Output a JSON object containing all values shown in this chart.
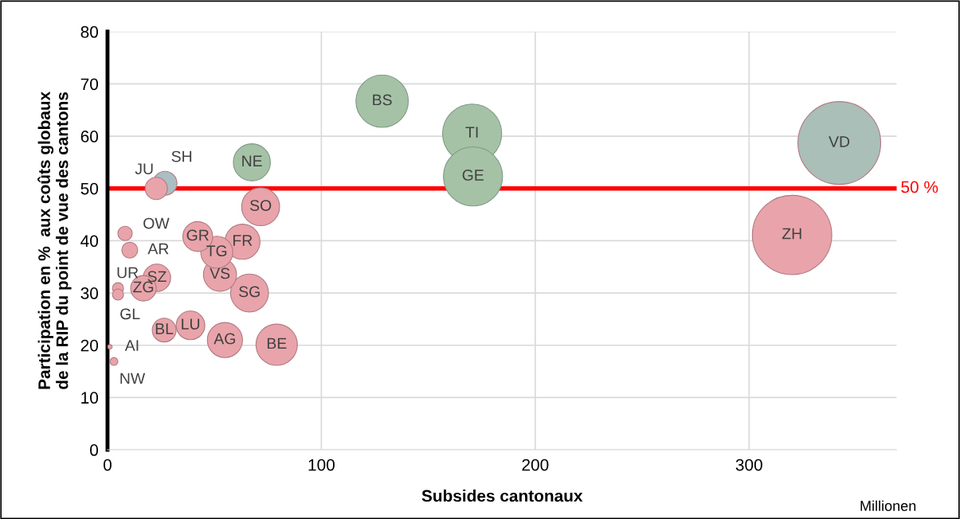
{
  "chart_data": {
    "type": "bubble",
    "xlabel": "Subsides cantonaux",
    "ylabel": "Participation en %  aux coûts globaux\nde la RIP du point de vue des cantons",
    "xlim": [
      0,
      369
    ],
    "xticks": [
      0,
      100,
      200,
      300
    ],
    "ylim": [
      0,
      80
    ],
    "yticks": [
      0,
      10,
      20,
      30,
      40,
      50,
      60,
      70,
      80
    ],
    "grid": true,
    "legend": false,
    "ref_lines": [
      {
        "axis": "y",
        "value": 50,
        "label": "50 %",
        "color": "#ff0000"
      }
    ],
    "annotations": [
      "Millionen"
    ],
    "series": [
      {
        "name": "VD",
        "color": "#a9bfb8",
        "x": [
          342.2
        ],
        "values": [
          58.7
        ],
        "sizes": [
          1.0
        ]
      },
      {
        "name": "ZH",
        "color": "#e8a4aa",
        "x": [
          320.1
        ],
        "values": [
          41.1
        ],
        "sizes": [
          0.92
        ]
      },
      {
        "name": "TI",
        "color": "#a5c2a6",
        "x": [
          170.5
        ],
        "values": [
          60.5
        ],
        "sizes": [
          0.51
        ]
      },
      {
        "name": "GE",
        "color": "#a5c2a6",
        "x": [
          170.9
        ],
        "values": [
          52.3
        ],
        "sizes": [
          0.51
        ]
      },
      {
        "name": "BS",
        "color": "#a5c2a6",
        "x": [
          128.4
        ],
        "values": [
          66.7
        ],
        "sizes": [
          0.4
        ]
      },
      {
        "name": "BE",
        "color": "#e8a4aa",
        "x": [
          79.1
        ],
        "values": [
          20.1
        ],
        "sizes": [
          0.25
        ]
      },
      {
        "name": "SO",
        "color": "#e8a4aa",
        "x": [
          71.6
        ],
        "values": [
          46.5
        ],
        "sizes": [
          0.21
        ]
      },
      {
        "name": "SG",
        "color": "#e8a4aa",
        "x": [
          66.4
        ],
        "values": [
          30.0
        ],
        "sizes": [
          0.21
        ]
      },
      {
        "name": "NE",
        "color": "#a5c2a6",
        "x": [
          67.5
        ],
        "values": [
          55.0
        ],
        "sizes": [
          0.2
        ]
      },
      {
        "name": "FR",
        "color": "#e8a4aa",
        "x": [
          63.1
        ],
        "values": [
          39.8
        ],
        "sizes": [
          0.18
        ]
      },
      {
        "name": "AG",
        "color": "#e8a4aa",
        "x": [
          54.9
        ],
        "values": [
          21.0
        ],
        "sizes": [
          0.18
        ]
      },
      {
        "name": "VS",
        "color": "#e8a4aa",
        "x": [
          52.6
        ],
        "values": [
          33.5
        ],
        "sizes": [
          0.16
        ]
      },
      {
        "name": "TG",
        "color": "#e8a4aa",
        "x": [
          51.1
        ],
        "values": [
          37.8
        ],
        "sizes": [
          0.15
        ]
      },
      {
        "name": "GR",
        "color": "#e8a4aa",
        "x": [
          42.2
        ],
        "values": [
          40.8
        ],
        "sizes": [
          0.13
        ]
      },
      {
        "name": "LU",
        "color": "#e8a4aa",
        "x": [
          38.8
        ],
        "values": [
          23.8
        ],
        "sizes": [
          0.12
        ]
      },
      {
        "name": "SZ",
        "color": "#e8a4aa",
        "x": [
          23.1
        ],
        "values": [
          32.9
        ],
        "sizes": [
          0.11
        ]
      },
      {
        "name": "ZG",
        "color": "#e8a4aa",
        "x": [
          16.8
        ],
        "values": [
          30.9
        ],
        "sizes": [
          0.095
        ]
      },
      {
        "name": "BL",
        "color": "#e8a4aa",
        "x": [
          26.5
        ],
        "values": [
          22.9
        ],
        "sizes": [
          0.083
        ]
      },
      {
        "name": "SH",
        "color": "#a9bfc4",
        "x": [
          26.9
        ],
        "values": [
          51.0
        ],
        "sizes": [
          0.083
        ]
      },
      {
        "name": "JU",
        "color": "#e8a4aa",
        "x": [
          22.8
        ],
        "values": [
          50.0
        ],
        "sizes": [
          0.072
        ]
      },
      {
        "name": "AR",
        "color": "#e8a4aa",
        "x": [
          10.4
        ],
        "values": [
          38.2
        ],
        "sizes": [
          0.037
        ]
      },
      {
        "name": "OW",
        "color": "#e8a4aa",
        "x": [
          8.2
        ],
        "values": [
          41.4
        ],
        "sizes": [
          0.03
        ]
      },
      {
        "name": "UR",
        "color": "#e8a4aa",
        "x": [
          4.9
        ],
        "values": [
          30.9
        ],
        "sizes": [
          0.018
        ]
      },
      {
        "name": "GL",
        "color": "#e8a4aa",
        "x": [
          4.9
        ],
        "values": [
          29.7
        ],
        "sizes": [
          0.018
        ]
      },
      {
        "name": "NW",
        "color": "#e8a4aa",
        "x": [
          3.0
        ],
        "values": [
          16.9
        ],
        "sizes": [
          0.009
        ]
      },
      {
        "name": "AI",
        "color": "#e8a4aa",
        "x": [
          1.1
        ],
        "values": [
          19.7
        ],
        "sizes": [
          0.003
        ]
      }
    ]
  }
}
